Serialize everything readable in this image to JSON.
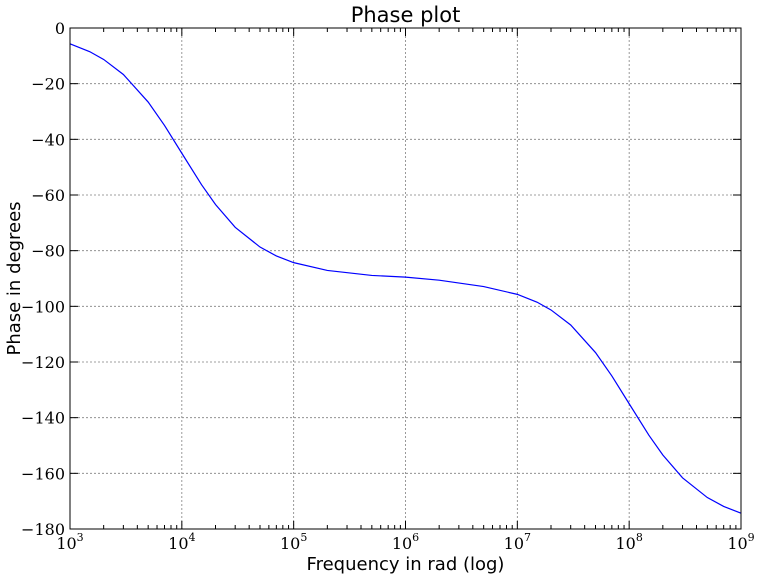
{
  "chart_data": {
    "type": "line",
    "title": "Phase plot",
    "xlabel": "Frequency in rad (log)",
    "ylabel": "Phase in degrees",
    "xscale": "log",
    "xlim": [
      1000,
      1000000000
    ],
    "ylim": [
      -180,
      0
    ],
    "grid": true,
    "x_ticks": [
      {
        "base": "10",
        "exp": "3"
      },
      {
        "base": "10",
        "exp": "4"
      },
      {
        "base": "10",
        "exp": "5"
      },
      {
        "base": "10",
        "exp": "6"
      },
      {
        "base": "10",
        "exp": "7"
      },
      {
        "base": "10",
        "exp": "8"
      },
      {
        "base": "10",
        "exp": "9"
      }
    ],
    "y_ticks": [
      "0",
      "−20",
      "−40",
      "−60",
      "−80",
      "−100",
      "−120",
      "−140",
      "−160",
      "−180"
    ],
    "series": [
      {
        "color": "#0000ff",
        "x": [
          1000,
          1500,
          2000,
          3000,
          5000,
          7000,
          10000,
          15000,
          20000,
          30000,
          50000,
          70000,
          100000,
          200000,
          500000,
          1000000,
          2000000,
          5000000,
          10000000,
          15000000,
          20000000,
          30000000,
          50000000,
          70000000,
          100000000,
          150000000,
          200000000,
          300000000,
          500000000,
          700000000,
          1000000000
        ],
        "y": [
          -5.7,
          -8.5,
          -11.3,
          -16.7,
          -26.6,
          -35.0,
          -45.0,
          -56.3,
          -63.4,
          -71.6,
          -78.7,
          -81.9,
          -84.3,
          -87.1,
          -88.9,
          -89.5,
          -90.6,
          -92.9,
          -95.7,
          -98.5,
          -101.3,
          -106.7,
          -116.6,
          -125.0,
          -135.0,
          -146.3,
          -153.4,
          -161.6,
          -168.7,
          -171.9,
          -174.3
        ]
      }
    ]
  }
}
